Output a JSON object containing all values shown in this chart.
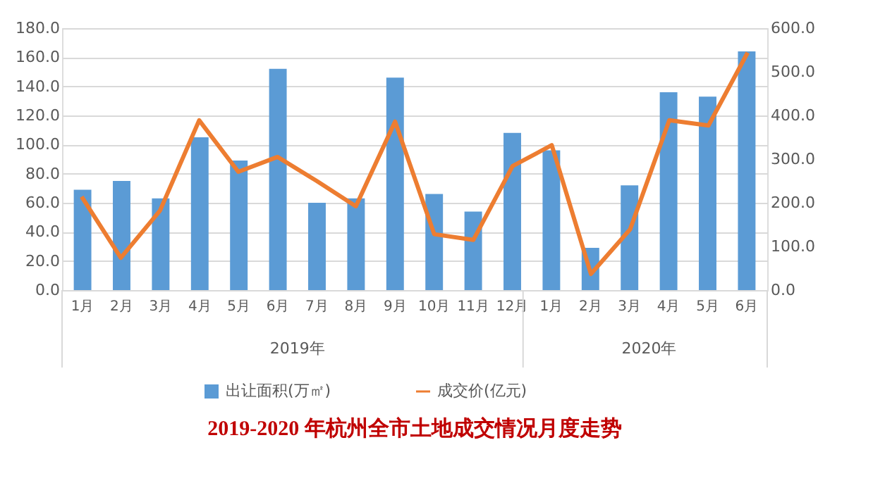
{
  "chart_data": {
    "type": "bar",
    "title": "2019-2020 年杭州全市土地成交情况月度走势",
    "categories": [
      "1月",
      "2月",
      "3月",
      "4月",
      "5月",
      "6月",
      "7月",
      "8月",
      "9月",
      "10月",
      "11月",
      "12月",
      "1月",
      "2月",
      "3月",
      "4月",
      "5月",
      "6月"
    ],
    "series": [
      {
        "name": "出让面积(万㎡)",
        "color": "#5b9bd5",
        "values": [
          69,
          75,
          63,
          105,
          89,
          152,
          60,
          63,
          146,
          66,
          54,
          108,
          96,
          29,
          72,
          136,
          133,
          164
        ]
      },
      {
        "name": "成交价(亿元)",
        "type": "line",
        "axis": "y2",
        "color": "#ed7d31",
        "values": [
          214,
          74,
          182,
          389,
          271,
          305,
          250,
          192,
          386,
          128,
          115,
          284,
          332,
          37,
          139,
          389,
          377,
          544
        ]
      }
    ],
    "annotations": [
      "2019年",
      "2020年"
    ],
    "ylim": [
      0,
      180
    ],
    "yticks": [
      {
        "value": 0,
        "label": "0.0"
      },
      {
        "value": 20,
        "label": "20.0"
      },
      {
        "value": 40,
        "label": "40.0"
      },
      {
        "value": 60,
        "label": "60.0"
      },
      {
        "value": 80,
        "label": "80.0"
      },
      {
        "value": 100,
        "label": "100.0"
      },
      {
        "value": 120,
        "label": "120.0"
      },
      {
        "value": 140,
        "label": "140.0"
      },
      {
        "value": 160,
        "label": "160.0"
      },
      {
        "value": 180,
        "label": "180.0"
      }
    ],
    "y2lim": [
      0,
      600
    ],
    "y2ticks": [
      {
        "value": 0,
        "label": "0.0"
      },
      {
        "value": 100,
        "label": "100.0"
      },
      {
        "value": 200,
        "label": "200.0"
      },
      {
        "value": 300,
        "label": "300.0"
      },
      {
        "value": 400,
        "label": "400.0"
      },
      {
        "value": 500,
        "label": "500.0"
      },
      {
        "value": 600,
        "label": "600.0"
      }
    ],
    "grid": "y",
    "legend": "bottom"
  }
}
